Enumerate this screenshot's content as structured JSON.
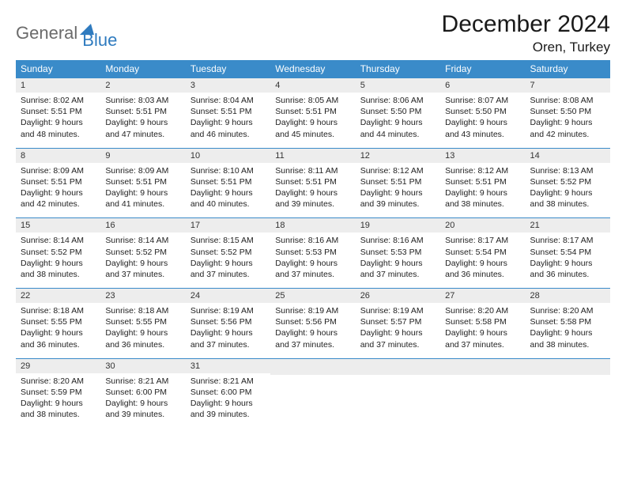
{
  "brand": {
    "general": "General",
    "blue": "Blue"
  },
  "title": "December 2024",
  "location": "Oren, Turkey",
  "colors": {
    "header_bg": "#3a8bc9",
    "header_text": "#ffffff",
    "daynum_bg": "#ededed",
    "rule": "#3a8bc9",
    "logo_gray": "#6b6b6b",
    "logo_blue": "#2f7bbf"
  },
  "dow": [
    "Sunday",
    "Monday",
    "Tuesday",
    "Wednesday",
    "Thursday",
    "Friday",
    "Saturday"
  ],
  "weeks": [
    [
      {
        "n": "1",
        "sr": "Sunrise: 8:02 AM",
        "ss": "Sunset: 5:51 PM",
        "d1": "Daylight: 9 hours",
        "d2": "and 48 minutes."
      },
      {
        "n": "2",
        "sr": "Sunrise: 8:03 AM",
        "ss": "Sunset: 5:51 PM",
        "d1": "Daylight: 9 hours",
        "d2": "and 47 minutes."
      },
      {
        "n": "3",
        "sr": "Sunrise: 8:04 AM",
        "ss": "Sunset: 5:51 PM",
        "d1": "Daylight: 9 hours",
        "d2": "and 46 minutes."
      },
      {
        "n": "4",
        "sr": "Sunrise: 8:05 AM",
        "ss": "Sunset: 5:51 PM",
        "d1": "Daylight: 9 hours",
        "d2": "and 45 minutes."
      },
      {
        "n": "5",
        "sr": "Sunrise: 8:06 AM",
        "ss": "Sunset: 5:50 PM",
        "d1": "Daylight: 9 hours",
        "d2": "and 44 minutes."
      },
      {
        "n": "6",
        "sr": "Sunrise: 8:07 AM",
        "ss": "Sunset: 5:50 PM",
        "d1": "Daylight: 9 hours",
        "d2": "and 43 minutes."
      },
      {
        "n": "7",
        "sr": "Sunrise: 8:08 AM",
        "ss": "Sunset: 5:50 PM",
        "d1": "Daylight: 9 hours",
        "d2": "and 42 minutes."
      }
    ],
    [
      {
        "n": "8",
        "sr": "Sunrise: 8:09 AM",
        "ss": "Sunset: 5:51 PM",
        "d1": "Daylight: 9 hours",
        "d2": "and 42 minutes."
      },
      {
        "n": "9",
        "sr": "Sunrise: 8:09 AM",
        "ss": "Sunset: 5:51 PM",
        "d1": "Daylight: 9 hours",
        "d2": "and 41 minutes."
      },
      {
        "n": "10",
        "sr": "Sunrise: 8:10 AM",
        "ss": "Sunset: 5:51 PM",
        "d1": "Daylight: 9 hours",
        "d2": "and 40 minutes."
      },
      {
        "n": "11",
        "sr": "Sunrise: 8:11 AM",
        "ss": "Sunset: 5:51 PM",
        "d1": "Daylight: 9 hours",
        "d2": "and 39 minutes."
      },
      {
        "n": "12",
        "sr": "Sunrise: 8:12 AM",
        "ss": "Sunset: 5:51 PM",
        "d1": "Daylight: 9 hours",
        "d2": "and 39 minutes."
      },
      {
        "n": "13",
        "sr": "Sunrise: 8:12 AM",
        "ss": "Sunset: 5:51 PM",
        "d1": "Daylight: 9 hours",
        "d2": "and 38 minutes."
      },
      {
        "n": "14",
        "sr": "Sunrise: 8:13 AM",
        "ss": "Sunset: 5:52 PM",
        "d1": "Daylight: 9 hours",
        "d2": "and 38 minutes."
      }
    ],
    [
      {
        "n": "15",
        "sr": "Sunrise: 8:14 AM",
        "ss": "Sunset: 5:52 PM",
        "d1": "Daylight: 9 hours",
        "d2": "and 38 minutes."
      },
      {
        "n": "16",
        "sr": "Sunrise: 8:14 AM",
        "ss": "Sunset: 5:52 PM",
        "d1": "Daylight: 9 hours",
        "d2": "and 37 minutes."
      },
      {
        "n": "17",
        "sr": "Sunrise: 8:15 AM",
        "ss": "Sunset: 5:52 PM",
        "d1": "Daylight: 9 hours",
        "d2": "and 37 minutes."
      },
      {
        "n": "18",
        "sr": "Sunrise: 8:16 AM",
        "ss": "Sunset: 5:53 PM",
        "d1": "Daylight: 9 hours",
        "d2": "and 37 minutes."
      },
      {
        "n": "19",
        "sr": "Sunrise: 8:16 AM",
        "ss": "Sunset: 5:53 PM",
        "d1": "Daylight: 9 hours",
        "d2": "and 37 minutes."
      },
      {
        "n": "20",
        "sr": "Sunrise: 8:17 AM",
        "ss": "Sunset: 5:54 PM",
        "d1": "Daylight: 9 hours",
        "d2": "and 36 minutes."
      },
      {
        "n": "21",
        "sr": "Sunrise: 8:17 AM",
        "ss": "Sunset: 5:54 PM",
        "d1": "Daylight: 9 hours",
        "d2": "and 36 minutes."
      }
    ],
    [
      {
        "n": "22",
        "sr": "Sunrise: 8:18 AM",
        "ss": "Sunset: 5:55 PM",
        "d1": "Daylight: 9 hours",
        "d2": "and 36 minutes."
      },
      {
        "n": "23",
        "sr": "Sunrise: 8:18 AM",
        "ss": "Sunset: 5:55 PM",
        "d1": "Daylight: 9 hours",
        "d2": "and 36 minutes."
      },
      {
        "n": "24",
        "sr": "Sunrise: 8:19 AM",
        "ss": "Sunset: 5:56 PM",
        "d1": "Daylight: 9 hours",
        "d2": "and 37 minutes."
      },
      {
        "n": "25",
        "sr": "Sunrise: 8:19 AM",
        "ss": "Sunset: 5:56 PM",
        "d1": "Daylight: 9 hours",
        "d2": "and 37 minutes."
      },
      {
        "n": "26",
        "sr": "Sunrise: 8:19 AM",
        "ss": "Sunset: 5:57 PM",
        "d1": "Daylight: 9 hours",
        "d2": "and 37 minutes."
      },
      {
        "n": "27",
        "sr": "Sunrise: 8:20 AM",
        "ss": "Sunset: 5:58 PM",
        "d1": "Daylight: 9 hours",
        "d2": "and 37 minutes."
      },
      {
        "n": "28",
        "sr": "Sunrise: 8:20 AM",
        "ss": "Sunset: 5:58 PM",
        "d1": "Daylight: 9 hours",
        "d2": "and 38 minutes."
      }
    ],
    [
      {
        "n": "29",
        "sr": "Sunrise: 8:20 AM",
        "ss": "Sunset: 5:59 PM",
        "d1": "Daylight: 9 hours",
        "d2": "and 38 minutes."
      },
      {
        "n": "30",
        "sr": "Sunrise: 8:21 AM",
        "ss": "Sunset: 6:00 PM",
        "d1": "Daylight: 9 hours",
        "d2": "and 39 minutes."
      },
      {
        "n": "31",
        "sr": "Sunrise: 8:21 AM",
        "ss": "Sunset: 6:00 PM",
        "d1": "Daylight: 9 hours",
        "d2": "and 39 minutes."
      },
      null,
      null,
      null,
      null
    ]
  ]
}
